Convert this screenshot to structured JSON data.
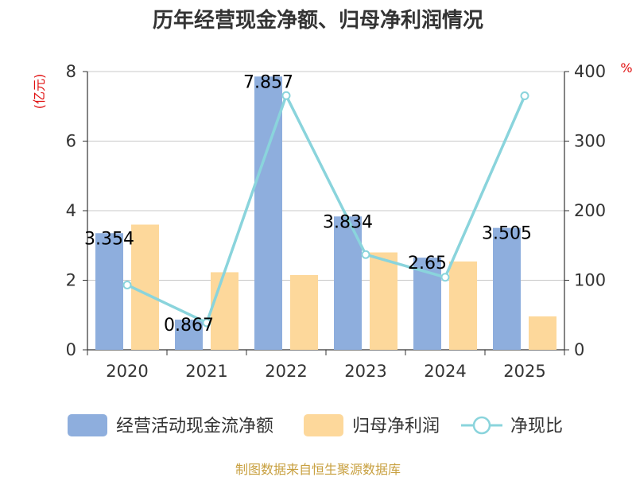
{
  "chart_data": {
    "type": "bar",
    "title": "历年经营现金净额、归母净利润情况",
    "categories": [
      "2020",
      "2021",
      "2022",
      "2023",
      "2024",
      "2025"
    ],
    "y_left": {
      "unit": "(亿元)",
      "min": 0,
      "max": 8,
      "ticks": [
        "0",
        "2",
        "4",
        "6",
        "8"
      ]
    },
    "y_right": {
      "unit": "%",
      "min": 0,
      "max": 400,
      "ticks": [
        "0",
        "100",
        "200",
        "300",
        "400"
      ]
    },
    "grid": true,
    "legend_position": "bottom",
    "series": [
      {
        "name": "经营活动现金流净额",
        "type": "bar",
        "axis": "left",
        "color": "#8eaedd",
        "values": [
          3.354,
          0.867,
          7.857,
          3.834,
          2.65,
          3.505
        ],
        "labels": [
          "3.354",
          "0.867",
          "7.857",
          "3.834",
          "2.65",
          "3.505"
        ]
      },
      {
        "name": "归母净利润",
        "type": "bar",
        "axis": "left",
        "color": "#fdd89b",
        "values": [
          3.6,
          2.23,
          2.15,
          2.8,
          2.54,
          0.96
        ]
      },
      {
        "name": "净现比",
        "type": "line",
        "axis": "right",
        "color": "#8ad4dc",
        "values": [
          93.2,
          38.9,
          365.4,
          136.9,
          104.3,
          365.1
        ]
      }
    ],
    "source": "制图数据来自恒生聚源数据库"
  }
}
